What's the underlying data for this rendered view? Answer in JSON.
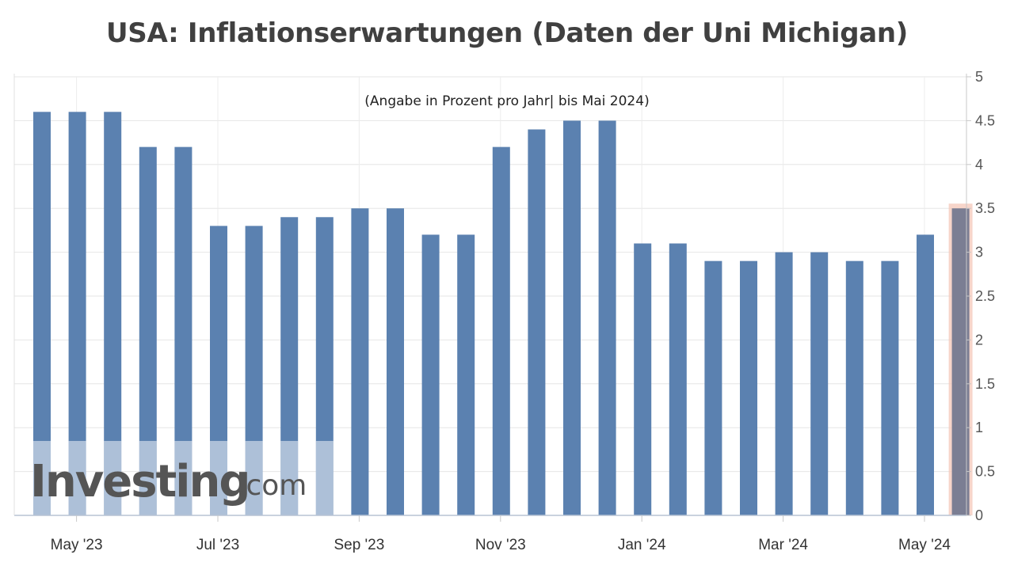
{
  "title": "USA: Inflationserwartungen (Daten der Uni Michigan)",
  "chart_data": {
    "type": "bar",
    "subtitle": "(Angabe in Prozent pro Jahr| bis Mai 2024)",
    "values": [
      4.6,
      4.6,
      4.6,
      4.2,
      4.2,
      3.3,
      3.3,
      3.4,
      3.4,
      3.5,
      3.5,
      3.2,
      3.2,
      4.2,
      4.4,
      4.5,
      4.5,
      3.1,
      3.1,
      2.9,
      2.9,
      3.0,
      3.0,
      2.9,
      2.9,
      3.2,
      3.5
    ],
    "highlight_last": true,
    "x_ticks": [
      "May '23",
      "Jul '23",
      "Sep '23",
      "Nov '23",
      "Jan '24",
      "Mar '24",
      "May '24"
    ],
    "y_ticks": [
      "0",
      "0.5",
      "1",
      "1.5",
      "2",
      "2.5",
      "3",
      "3.5",
      "4",
      "4.5",
      "5"
    ],
    "ylim": [
      0,
      5
    ],
    "y_axis_position": "right",
    "grid": true,
    "bar_color": "#5b81b0",
    "highlight_bar_color": "#7b7e93",
    "highlight_frame_color": "#f4c7b8"
  },
  "watermark": {
    "brand": "Investing",
    "suffix": ".com"
  }
}
